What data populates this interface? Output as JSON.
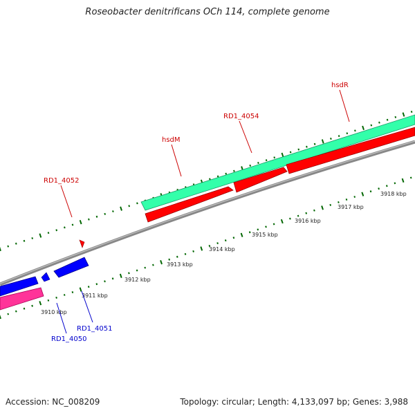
{
  "title": "Roseobacter denitrificans OCh 114, complete genome",
  "accession": "Accession: NC_008209",
  "summary": "Topology: circular; Length: 4,133,097 bp; Genes: 3,988",
  "colors": {
    "forward_cds": "#ff0000",
    "reverse_cds": "#0000ff",
    "forward_gene_band": "#33ffaa",
    "reverse_gene_band": "#ff3399",
    "backbone": "#888888",
    "ticks": "#006600",
    "forward_label": "#cc0000",
    "reverse_label": "#0000cc"
  },
  "scale_labels": [
    "3910 kbp",
    "3911 kbp",
    "3912 kbp",
    "3913 kbp",
    "3914 kbp",
    "3915 kbp",
    "3916 kbp",
    "3917 kbp",
    "3918 kbp"
  ],
  "gene_labels": {
    "hsdR": "hsdR",
    "rd1_4054": "RD1_4054",
    "hsdM": "hsdM",
    "rd1_4052": "RD1_4052",
    "rd1_4051": "RD1_4051",
    "rd1_4050": "RD1_4050"
  }
}
